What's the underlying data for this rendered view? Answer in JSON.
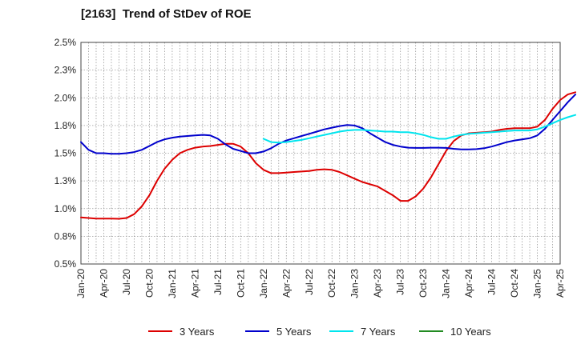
{
  "chart_data": {
    "type": "line",
    "title": "[2163]  Trend of StDev of ROE",
    "xlabel": "",
    "ylabel": "",
    "x_ticks": [
      "Jan-20",
      "Apr-20",
      "Jul-20",
      "Oct-20",
      "Jan-21",
      "Apr-21",
      "Jul-21",
      "Oct-21",
      "Jan-22",
      "Apr-22",
      "Jul-22",
      "Oct-22",
      "Jan-23",
      "Apr-23",
      "Jul-23",
      "Oct-23",
      "Jan-24",
      "Apr-24",
      "Jul-24",
      "Oct-24",
      "Jan-25",
      "Apr-25"
    ],
    "y_ticks": [
      "0.5%",
      "0.8%",
      "1.0%",
      "1.3%",
      "1.5%",
      "1.8%",
      "2.0%",
      "2.3%",
      "2.5%"
    ],
    "ylim": [
      0.5,
      2.5
    ],
    "grid": "dotted",
    "legend_position": "bottom",
    "series": [
      {
        "name": "3 Years",
        "color": "#dd0000",
        "values": [
          [
            0,
            0.92
          ],
          [
            1,
            0.915
          ],
          [
            2,
            0.91
          ],
          [
            3,
            0.91
          ],
          [
            4,
            0.91
          ],
          [
            5,
            0.908
          ],
          [
            6,
            0.915
          ],
          [
            7,
            0.95
          ],
          [
            8,
            1.02
          ],
          [
            9,
            1.12
          ],
          [
            10,
            1.25
          ],
          [
            11,
            1.36
          ],
          [
            12,
            1.44
          ],
          [
            13,
            1.5
          ],
          [
            14,
            1.53
          ],
          [
            15,
            1.55
          ],
          [
            16,
            1.56
          ],
          [
            17,
            1.565
          ],
          [
            18,
            1.575
          ],
          [
            19,
            1.585
          ],
          [
            20,
            1.585
          ],
          [
            21,
            1.56
          ],
          [
            22,
            1.5
          ],
          [
            23,
            1.41
          ],
          [
            24,
            1.35
          ],
          [
            25,
            1.32
          ],
          [
            26,
            1.32
          ],
          [
            27,
            1.325
          ],
          [
            28,
            1.33
          ],
          [
            29,
            1.335
          ],
          [
            30,
            1.34
          ],
          [
            31,
            1.35
          ],
          [
            32,
            1.355
          ],
          [
            33,
            1.35
          ],
          [
            34,
            1.33
          ],
          [
            35,
            1.3
          ],
          [
            36,
            1.27
          ],
          [
            37,
            1.24
          ],
          [
            38,
            1.22
          ],
          [
            39,
            1.2
          ],
          [
            40,
            1.16
          ],
          [
            41,
            1.12
          ],
          [
            42,
            1.07
          ],
          [
            43,
            1.07
          ],
          [
            44,
            1.11
          ],
          [
            45,
            1.18
          ],
          [
            46,
            1.28
          ],
          [
            47,
            1.4
          ],
          [
            48,
            1.52
          ],
          [
            49,
            1.61
          ],
          [
            50,
            1.66
          ],
          [
            51,
            1.68
          ],
          [
            52,
            1.685
          ],
          [
            53,
            1.69
          ],
          [
            54,
            1.695
          ],
          [
            55,
            1.71
          ],
          [
            56,
            1.72
          ],
          [
            57,
            1.725
          ],
          [
            58,
            1.725
          ],
          [
            59,
            1.725
          ],
          [
            60,
            1.74
          ],
          [
            61,
            1.8
          ],
          [
            62,
            1.9
          ],
          [
            63,
            1.98
          ],
          [
            64,
            2.03
          ],
          [
            65,
            2.05
          ]
        ]
      },
      {
        "name": "5 Years",
        "color": "#0000cc",
        "values": [
          [
            0,
            1.6
          ],
          [
            1,
            1.53
          ],
          [
            2,
            1.5
          ],
          [
            3,
            1.5
          ],
          [
            4,
            1.495
          ],
          [
            5,
            1.495
          ],
          [
            6,
            1.5
          ],
          [
            7,
            1.51
          ],
          [
            8,
            1.53
          ],
          [
            9,
            1.565
          ],
          [
            10,
            1.6
          ],
          [
            11,
            1.625
          ],
          [
            12,
            1.64
          ],
          [
            13,
            1.65
          ],
          [
            14,
            1.655
          ],
          [
            15,
            1.66
          ],
          [
            16,
            1.665
          ],
          [
            17,
            1.66
          ],
          [
            18,
            1.63
          ],
          [
            19,
            1.58
          ],
          [
            20,
            1.54
          ],
          [
            21,
            1.52
          ],
          [
            22,
            1.5
          ],
          [
            23,
            1.5
          ],
          [
            24,
            1.515
          ],
          [
            25,
            1.545
          ],
          [
            26,
            1.585
          ],
          [
            27,
            1.615
          ],
          [
            28,
            1.635
          ],
          [
            29,
            1.655
          ],
          [
            30,
            1.675
          ],
          [
            31,
            1.695
          ],
          [
            32,
            1.715
          ],
          [
            33,
            1.73
          ],
          [
            34,
            1.745
          ],
          [
            35,
            1.755
          ],
          [
            36,
            1.75
          ],
          [
            37,
            1.725
          ],
          [
            38,
            1.68
          ],
          [
            39,
            1.64
          ],
          [
            40,
            1.6
          ],
          [
            41,
            1.575
          ],
          [
            42,
            1.56
          ],
          [
            43,
            1.55
          ],
          [
            44,
            1.548
          ],
          [
            45,
            1.548
          ],
          [
            46,
            1.55
          ],
          [
            47,
            1.55
          ],
          [
            48,
            1.548
          ],
          [
            49,
            1.54
          ],
          [
            50,
            1.535
          ],
          [
            51,
            1.535
          ],
          [
            52,
            1.537
          ],
          [
            53,
            1.545
          ],
          [
            54,
            1.56
          ],
          [
            55,
            1.58
          ],
          [
            56,
            1.6
          ],
          [
            57,
            1.615
          ],
          [
            58,
            1.625
          ],
          [
            59,
            1.635
          ],
          [
            60,
            1.66
          ],
          [
            61,
            1.72
          ],
          [
            62,
            1.8
          ],
          [
            63,
            1.88
          ],
          [
            64,
            1.96
          ],
          [
            65,
            2.03
          ]
        ]
      },
      {
        "name": "7 Years",
        "color": "#00e5ee",
        "values": [
          [
            24,
            1.63
          ],
          [
            25,
            1.6
          ],
          [
            26,
            1.595
          ],
          [
            27,
            1.6
          ],
          [
            28,
            1.61
          ],
          [
            29,
            1.62
          ],
          [
            30,
            1.635
          ],
          [
            31,
            1.65
          ],
          [
            32,
            1.665
          ],
          [
            33,
            1.68
          ],
          [
            34,
            1.695
          ],
          [
            35,
            1.705
          ],
          [
            36,
            1.71
          ],
          [
            37,
            1.71
          ],
          [
            38,
            1.705
          ],
          [
            39,
            1.7
          ],
          [
            40,
            1.695
          ],
          [
            41,
            1.695
          ],
          [
            42,
            1.69
          ],
          [
            43,
            1.69
          ],
          [
            44,
            1.68
          ],
          [
            45,
            1.665
          ],
          [
            46,
            1.645
          ],
          [
            47,
            1.63
          ],
          [
            48,
            1.63
          ],
          [
            49,
            1.65
          ],
          [
            50,
            1.665
          ],
          [
            51,
            1.675
          ],
          [
            52,
            1.68
          ],
          [
            53,
            1.685
          ],
          [
            54,
            1.69
          ],
          [
            55,
            1.695
          ],
          [
            56,
            1.7
          ],
          [
            57,
            1.705
          ],
          [
            58,
            1.705
          ],
          [
            59,
            1.705
          ],
          [
            60,
            1.715
          ],
          [
            61,
            1.74
          ],
          [
            62,
            1.77
          ],
          [
            63,
            1.8
          ],
          [
            64,
            1.825
          ],
          [
            65,
            1.845
          ]
        ]
      },
      {
        "name": "10 Years",
        "color": "#228b22",
        "values": []
      }
    ]
  }
}
